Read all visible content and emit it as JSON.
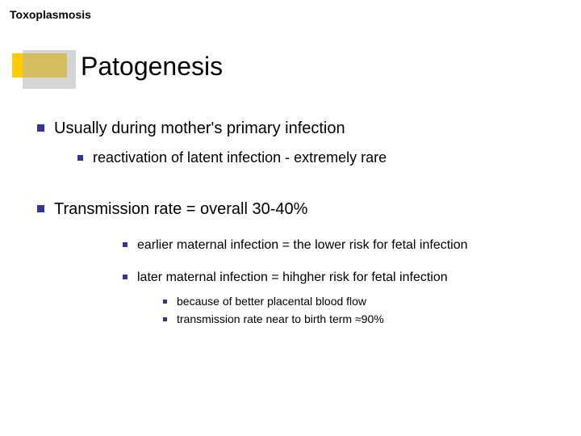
{
  "header": {
    "text": "Toxoplasmosis"
  },
  "title": {
    "text": "Patogenesis",
    "accent_yellow": "#ffcc00",
    "accent_gray": "#b2b2b2"
  },
  "bullet_color": "#333399",
  "text_color": "#000000",
  "background_color": "#ffffff",
  "font_family": "Verdana",
  "bullets": {
    "l1a": "Usually during mother's primary infection",
    "l2a": "reactivation of latent infection - extremely rare",
    "l1b": "Transmission rate = overall 30-40%",
    "l3a": "earlier maternal infection = the lower risk for fetal infection",
    "l3b": "later maternal infection = hihgher risk for fetal infection",
    "l4a": "because of better placental blood flow",
    "l4b": "transmission rate near to birth term ≈90%"
  },
  "font_sizes": {
    "header": 14,
    "title": 32,
    "lvl1": 20,
    "lvl2": 18,
    "lvl3": 16,
    "lvl4": 14
  }
}
